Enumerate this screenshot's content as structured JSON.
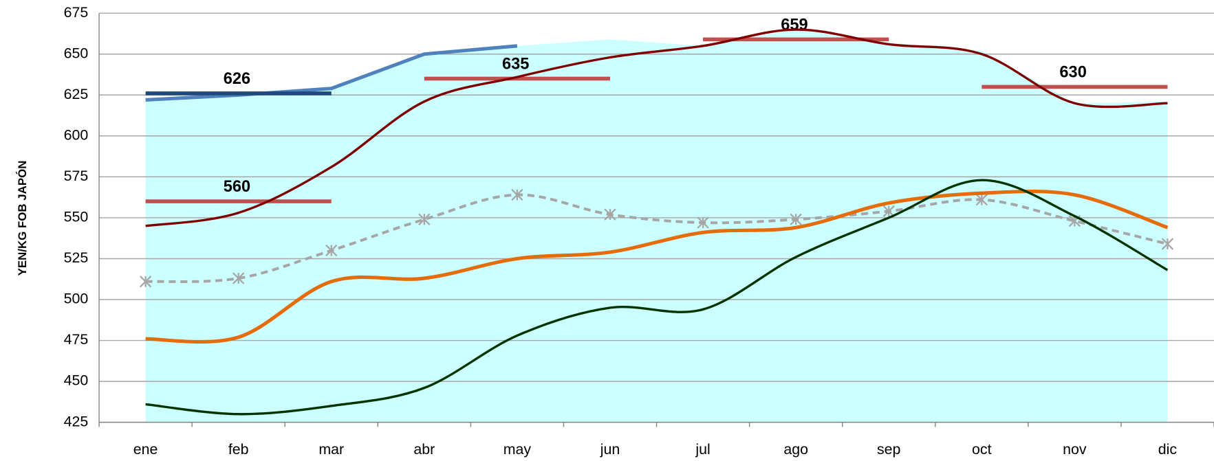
{
  "chart_data": {
    "type": "line",
    "y_label": "YEN/KG FOB JAPÓN",
    "categories": [
      "ene",
      "feb",
      "mar",
      "abr",
      "may",
      "jun",
      "jul",
      "ago",
      "sep",
      "oct",
      "nov",
      "dic"
    ],
    "ylim": [
      425,
      675
    ],
    "yticks": [
      425,
      450,
      475,
      500,
      525,
      550,
      575,
      600,
      625,
      650,
      675
    ],
    "grid": true,
    "series": [
      {
        "style": "area",
        "color": "#ccffff",
        "values": [
          622,
          625,
          629,
          650,
          655,
          659,
          655,
          665,
          657,
          652,
          620,
          621
        ]
      },
      {
        "style": "straight",
        "color": "#4f81bd",
        "values": [
          622,
          625,
          629,
          650,
          655,
          null,
          null,
          null,
          null,
          null,
          null,
          null
        ]
      },
      {
        "style": "step",
        "color": "#1f497d",
        "values": [
          626,
          626,
          626,
          null,
          null,
          null,
          null,
          null,
          null,
          null,
          null,
          null
        ]
      },
      {
        "style": "step",
        "color": "#c0504d",
        "values": [
          560,
          560,
          560,
          635,
          635,
          635,
          659,
          659,
          659,
          630,
          630,
          630
        ]
      },
      {
        "style": "smooth",
        "color": "#7f0000",
        "values": [
          545,
          553,
          581,
          621,
          636,
          648,
          655,
          665,
          656,
          650,
          620,
          620
        ]
      },
      {
        "style": "dashed",
        "color": "#a6a6a6",
        "marker": "asterisk",
        "values": [
          511,
          513,
          530,
          549,
          564,
          552,
          547,
          549,
          554,
          561,
          548,
          534
        ]
      },
      {
        "style": "smooth",
        "color": "#e46c0a",
        "values": [
          476,
          477,
          511,
          513,
          525,
          529,
          541,
          544,
          559,
          565,
          564,
          544
        ]
      },
      {
        "style": "smooth",
        "color": "#003300",
        "values": [
          436,
          430,
          435,
          446,
          478,
          495,
          494,
          526,
          550,
          573,
          551,
          518
        ]
      }
    ]
  }
}
